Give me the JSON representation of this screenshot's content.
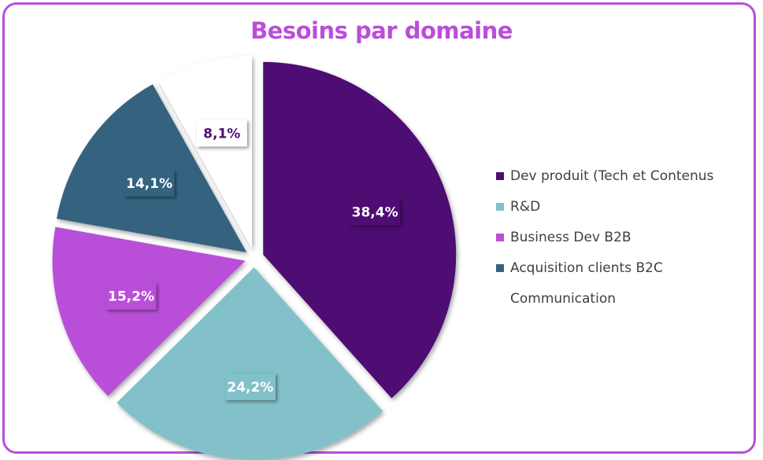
{
  "chart_data": {
    "type": "pie",
    "title": "Besoins par domaine",
    "slices": [
      {
        "label": "Dev produit (Tech et Contenus",
        "value": 38.4,
        "display": "38,4%",
        "color": "#4e0d72",
        "text_color": "#ffffff"
      },
      {
        "label": "R&D",
        "value": 24.2,
        "display": "24,2%",
        "color": "#82c1c9",
        "text_color": "#ffffff"
      },
      {
        "label": "Business Dev B2B",
        "value": 15.2,
        "display": "15,2%",
        "color": "#b94fd8",
        "text_color": "#ffffff"
      },
      {
        "label": "Acquisition clients B2C",
        "value": 14.1,
        "display": "14,1%",
        "color": "#34647f",
        "text_color": "#ffffff"
      },
      {
        "label": "Communication",
        "value": 8.1,
        "display": "8,1%",
        "color": "#ffffff",
        "text_color": "#4e0d72"
      }
    ],
    "legend_position": "right",
    "exploded": true
  }
}
